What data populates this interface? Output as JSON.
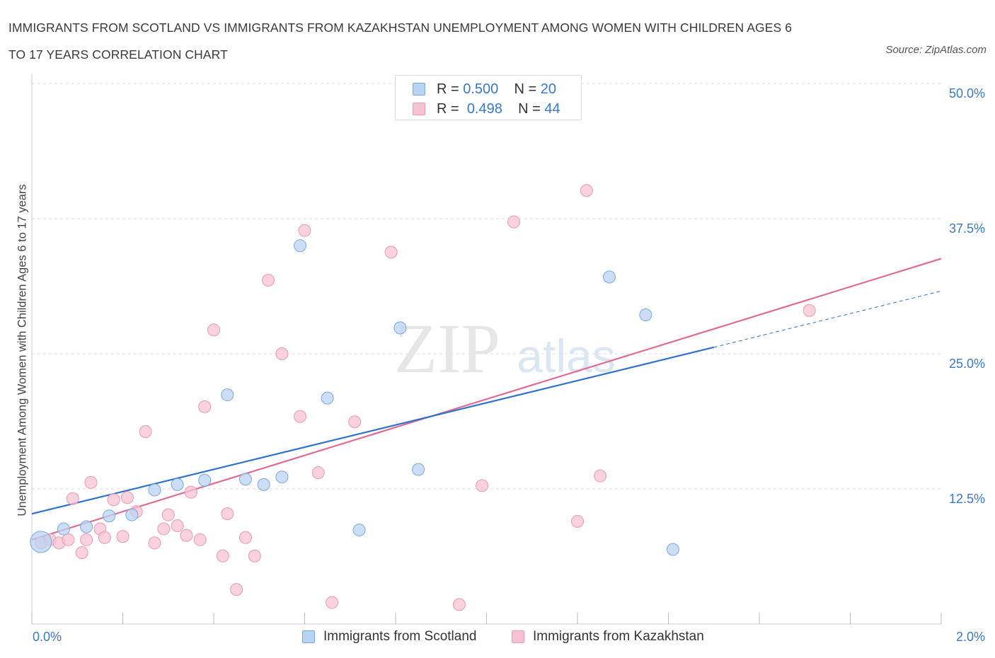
{
  "title_line1": "IMMIGRANTS FROM SCOTLAND VS IMMIGRANTS FROM KAZAKHSTAN UNEMPLOYMENT AMONG WOMEN WITH CHILDREN AGES 6",
  "title_line2": "TO 17 YEARS CORRELATION CHART",
  "source": "Source: ZipAtlas.com",
  "watermark": {
    "zip": "ZIP",
    "atlas": "atlas"
  },
  "legend": {
    "r_label": "R =",
    "n_label": "N =",
    "scotland": {
      "r": "0.500",
      "n": "20"
    },
    "kazakhstan": {
      "r": "0.498",
      "n": "44"
    }
  },
  "colors": {
    "scotland_fill": "#b9d3f3",
    "scotland_stroke": "#7aa8dd",
    "scotland_line": "#2f72c9",
    "kazakhstan_fill": "#f7c3d3",
    "kazakhstan_stroke": "#e99ab3",
    "kazakhstan_line": "#e06b95",
    "tick_text": "#3a78c8"
  },
  "chart_data": {
    "type": "scatter",
    "title": "IMMIGRANTS FROM SCOTLAND VS IMMIGRANTS FROM KAZAKHSTAN UNEMPLOYMENT AMONG WOMEN WITH CHILDREN AGES 6 TO 17 YEARS CORRELATION CHART",
    "xlabel": "",
    "ylabel": "Unemployment Among Women with Children Ages 6 to 17 years",
    "xlim": [
      0,
      2.0
    ],
    "ylim": [
      0,
      50
    ],
    "x_tick_labels": [
      "0.0%",
      "2.0%"
    ],
    "y_ticks": [
      12.5,
      25.0,
      37.5,
      50.0
    ],
    "y_tick_labels": [
      "12.5%",
      "25.0%",
      "37.5%",
      "50.0%"
    ],
    "grid": true,
    "legend_position": "top-center",
    "series": [
      {
        "name": "Immigrants from Scotland",
        "points": [
          [
            0.02,
            7.6
          ],
          [
            0.07,
            8.8
          ],
          [
            0.12,
            9.0
          ],
          [
            0.17,
            10.0
          ],
          [
            0.22,
            10.1
          ],
          [
            0.27,
            12.4
          ],
          [
            0.32,
            12.9
          ],
          [
            0.38,
            13.3
          ],
          [
            0.43,
            21.2
          ],
          [
            0.47,
            13.4
          ],
          [
            0.51,
            12.9
          ],
          [
            0.55,
            13.6
          ],
          [
            0.59,
            35.0
          ],
          [
            0.65,
            20.9
          ],
          [
            0.72,
            8.7
          ],
          [
            0.81,
            27.4
          ],
          [
            0.85,
            14.3
          ],
          [
            1.27,
            32.1
          ],
          [
            1.35,
            28.6
          ],
          [
            1.41,
            6.9
          ]
        ],
        "trend": {
          "x0": 0.0,
          "y0": 10.2,
          "x1": 1.5,
          "y1": 25.6,
          "dashed_to_x": 2.0,
          "dashed_to_y": 30.8
        }
      },
      {
        "name": "Immigrants from Kazakhstan",
        "points": [
          [
            0.02,
            7.5
          ],
          [
            0.04,
            7.8
          ],
          [
            0.06,
            7.5
          ],
          [
            0.08,
            7.8
          ],
          [
            0.09,
            11.6
          ],
          [
            0.11,
            6.6
          ],
          [
            0.12,
            7.8
          ],
          [
            0.13,
            13.1
          ],
          [
            0.15,
            8.8
          ],
          [
            0.16,
            8.0
          ],
          [
            0.18,
            11.5
          ],
          [
            0.2,
            8.1
          ],
          [
            0.21,
            11.7
          ],
          [
            0.23,
            10.4
          ],
          [
            0.25,
            17.8
          ],
          [
            0.27,
            7.5
          ],
          [
            0.29,
            8.8
          ],
          [
            0.3,
            10.1
          ],
          [
            0.32,
            9.1
          ],
          [
            0.34,
            8.2
          ],
          [
            0.35,
            12.2
          ],
          [
            0.37,
            7.8
          ],
          [
            0.38,
            20.1
          ],
          [
            0.4,
            27.2
          ],
          [
            0.42,
            6.3
          ],
          [
            0.43,
            10.2
          ],
          [
            0.45,
            3.2
          ],
          [
            0.47,
            8.0
          ],
          [
            0.49,
            6.3
          ],
          [
            0.52,
            31.8
          ],
          [
            0.55,
            25.0
          ],
          [
            0.59,
            19.2
          ],
          [
            0.6,
            36.4
          ],
          [
            0.63,
            14.0
          ],
          [
            0.66,
            2.0
          ],
          [
            0.71,
            18.7
          ],
          [
            0.79,
            34.4
          ],
          [
            0.94,
            1.8
          ],
          [
            0.99,
            12.8
          ],
          [
            1.06,
            37.2
          ],
          [
            1.2,
            9.5
          ],
          [
            1.22,
            40.1
          ],
          [
            1.25,
            13.7
          ],
          [
            1.71,
            29.0
          ]
        ],
        "trend": {
          "x0": 0.0,
          "y0": 7.8,
          "x1": 2.0,
          "y1": 33.8
        }
      }
    ]
  }
}
